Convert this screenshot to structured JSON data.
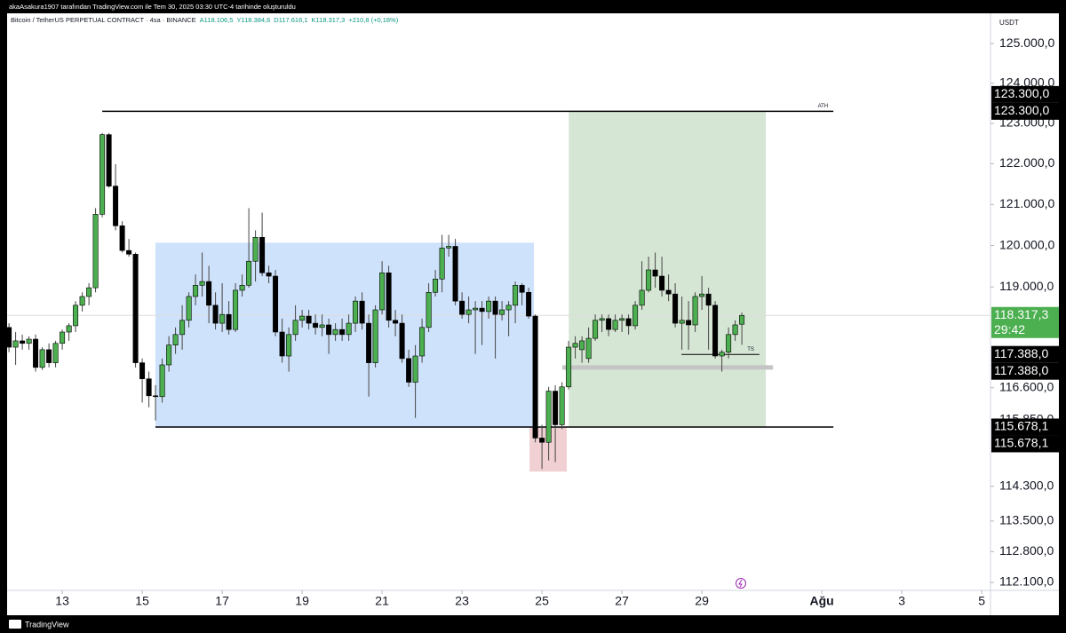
{
  "header": {
    "credit": "akaAsakura1907 tarafından TradingView.com ile Tem 30, 2025 03:30 UTC-4 tarihinde oluşturuldu",
    "symbol": "Bitcoin / TetherUS PERPETUAL CONTRACT · 4sa · BINANCE",
    "ohlc": [
      "A118.106,5",
      "Y118.384,6",
      "D117.616,1",
      "K118.317,3"
    ],
    "change": "+210,8 (+0,18%)"
  },
  "footer": {
    "brand": "TradingView"
  },
  "chart_data": {
    "type": "candlestick",
    "currency": "USDT",
    "log_scale": true,
    "up_color": "#4caf50",
    "down_color": "#000000",
    "xlim": [
      11.62,
      36.22
    ],
    "ylim": [
      111920,
      125880
    ],
    "xticks": [
      13,
      15,
      17,
      19,
      21,
      23,
      25,
      27,
      29,
      {
        "value": 32,
        "label": "Ağu"
      },
      {
        "value": 34,
        "label": "3"
      },
      {
        "value": 36,
        "label": "5"
      }
    ],
    "yticks": [
      {
        "value": 125000,
        "label": "125.000,0"
      },
      {
        "value": 124000,
        "label": "124.000,0"
      },
      {
        "value": 123000,
        "label": "123.000,0"
      },
      {
        "value": 122000,
        "label": "122.000,0"
      },
      {
        "value": 121000,
        "label": "121.000,0"
      },
      {
        "value": 120000,
        "label": "120.000,0"
      },
      {
        "value": 119000,
        "label": "119.000,0"
      },
      {
        "value": 116600,
        "label": "116.600,0"
      },
      {
        "value": 115850,
        "label": "115.850,0"
      },
      {
        "value": 114300,
        "label": "114.300,0"
      },
      {
        "value": 113500,
        "label": "113.500,0"
      },
      {
        "value": 112800,
        "label": "112.800,0"
      },
      {
        "value": 112100,
        "label": "112.100,0"
      }
    ],
    "x": [
      11.667,
      11.833,
      12,
      12.167,
      12.333,
      12.5,
      12.667,
      12.833,
      13,
      13.167,
      13.333,
      13.5,
      13.667,
      13.833,
      14,
      14.167,
      14.333,
      14.5,
      14.667,
      14.833,
      15,
      15.167,
      15.333,
      15.5,
      15.667,
      15.833,
      16,
      16.167,
      16.333,
      16.5,
      16.667,
      16.833,
      17,
      17.167,
      17.333,
      17.5,
      17.667,
      17.833,
      18,
      18.167,
      18.333,
      18.5,
      18.667,
      18.833,
      19,
      19.167,
      19.333,
      19.5,
      19.667,
      19.833,
      20,
      20.167,
      20.333,
      20.5,
      20.667,
      20.833,
      21,
      21.167,
      21.333,
      21.5,
      21.667,
      21.833,
      22,
      22.167,
      22.333,
      22.5,
      22.667,
      22.833,
      23,
      23.167,
      23.333,
      23.5,
      23.667,
      23.833,
      24,
      24.167,
      24.333,
      24.5,
      24.667,
      24.833,
      25,
      25.167,
      25.333,
      25.5,
      25.667,
      25.833,
      26,
      26.167,
      26.333,
      26.5,
      26.667,
      26.833,
      27,
      27.167,
      27.333,
      27.5,
      27.667,
      27.833,
      28,
      28.167,
      28.333,
      28.5,
      28.667,
      28.833,
      29,
      29.167,
      29.333,
      29.5,
      29.667,
      29.833,
      30
    ],
    "open": [
      118030,
      117560,
      117710,
      117650,
      117750,
      117080,
      117500,
      117190,
      117650,
      117920,
      118070,
      118560,
      118770,
      118980,
      120760,
      122720,
      121450,
      120480,
      119880,
      119790,
      117190,
      116810,
      116410,
      116390,
      117140,
      117610,
      117860,
      118200,
      118770,
      119040,
      119130,
      118560,
      118130,
      118340,
      117980,
      118920,
      119040,
      119620,
      120200,
      119340,
      119260,
      117920,
      117350,
      117860,
      118200,
      118300,
      118130,
      118030,
      118090,
      117860,
      117980,
      117860,
      118130,
      118660,
      118130,
      117190,
      118450,
      119340,
      118200,
      118130,
      117290,
      116730,
      117350,
      118030,
      118870,
      119190,
      119940,
      119980,
      118660,
      118340,
      118450,
      118490,
      118410,
      118660,
      118340,
      118450,
      118560,
      119040,
      118870,
      118300,
      115420,
      115320,
      116520,
      115730,
      116620,
      117560,
      117500,
      117290,
      117770,
      118200,
      118240,
      117980,
      118200,
      118240,
      118070,
      118560,
      118920,
      119410,
      119260,
      118920,
      118830,
      118130,
      118200,
      118090,
      118770,
      118830,
      118560,
      117350,
      117440,
      117860,
      118106.5
    ],
    "high": [
      118130,
      117920,
      117860,
      117820,
      117860,
      117560,
      117650,
      117710,
      117980,
      118130,
      118660,
      118870,
      119090,
      120910,
      122760,
      122760,
      121990,
      120590,
      120160,
      119830,
      117290,
      116980,
      116660,
      117290,
      117820,
      118030,
      118560,
      118870,
      119300,
      119830,
      119510,
      118870,
      119090,
      118660,
      119090,
      119300,
      120910,
      120370,
      120800,
      119510,
      119410,
      118240,
      118030,
      118560,
      118450,
      118450,
      118340,
      118340,
      118240,
      118130,
      118240,
      118340,
      118770,
      118870,
      118340,
      118560,
      119620,
      119510,
      118450,
      118340,
      117500,
      117610,
      118240,
      119090,
      119410,
      120260,
      120260,
      120160,
      118870,
      118770,
      118660,
      118660,
      118770,
      118770,
      118660,
      118660,
      119130,
      119090,
      118980,
      118340,
      115730,
      116620,
      116660,
      116730,
      117710,
      117820,
      117820,
      118030,
      118340,
      118340,
      118340,
      118340,
      118340,
      118340,
      118660,
      119620,
      119730,
      119830,
      119730,
      119300,
      119090,
      118770,
      118660,
      118870,
      119260,
      118980,
      118660,
      117500,
      118030,
      118200,
      118384.6
    ],
    "low": [
      117440,
      117140,
      117500,
      117500,
      116980,
      117020,
      117080,
      117080,
      117500,
      117710,
      117920,
      118410,
      118560,
      118870,
      120690,
      121410,
      120370,
      119830,
      119730,
      117080,
      116250,
      116140,
      115830,
      116250,
      116980,
      117400,
      117500,
      118030,
      118560,
      118770,
      118130,
      117980,
      117920,
      117860,
      117920,
      118770,
      118980,
      119130,
      119260,
      119090,
      117820,
      117190,
      116980,
      117710,
      118030,
      117980,
      117860,
      117820,
      117400,
      117710,
      117710,
      117710,
      117920,
      117980,
      116390,
      117080,
      118340,
      118030,
      117820,
      117190,
      116620,
      115890,
      117190,
      117920,
      118770,
      118870,
      119730,
      118560,
      118240,
      118130,
      117400,
      117610,
      118240,
      117290,
      118200,
      117820,
      118130,
      118560,
      118240,
      115320,
      114700,
      114900,
      114860,
      115630,
      116560,
      117290,
      117190,
      117190,
      117710,
      117920,
      117820,
      117920,
      117920,
      117860,
      117980,
      118450,
      118870,
      118980,
      118770,
      118660,
      118030,
      117500,
      117500,
      117920,
      118450,
      117500,
      117290,
      116980,
      117290,
      117710,
      117616.1
    ],
    "close": [
      117560,
      117710,
      117650,
      117750,
      117080,
      117500,
      117190,
      117650,
      117920,
      118070,
      118560,
      118770,
      118980,
      120760,
      122720,
      121450,
      120480,
      119880,
      119790,
      117190,
      116810,
      116410,
      116390,
      117140,
      117610,
      117860,
      118200,
      118770,
      119040,
      119130,
      118560,
      118130,
      118340,
      117980,
      118920,
      119040,
      119620,
      120200,
      119340,
      119260,
      117920,
      117350,
      117860,
      118200,
      118300,
      118130,
      118030,
      118090,
      117860,
      117980,
      117860,
      118130,
      118660,
      118130,
      117190,
      118450,
      119340,
      118200,
      118130,
      117290,
      116730,
      117350,
      118030,
      118870,
      119190,
      119940,
      119980,
      118660,
      118340,
      118450,
      118490,
      118410,
      118660,
      118340,
      118450,
      118560,
      119040,
      118870,
      118300,
      115420,
      115320,
      116520,
      115730,
      116620,
      117560,
      117650,
      117710,
      117770,
      118200,
      118240,
      117980,
      118200,
      118240,
      118070,
      118560,
      118920,
      119410,
      119260,
      118920,
      118830,
      118130,
      118200,
      118090,
      118770,
      118830,
      118560,
      117350,
      117440,
      117860,
      118090,
      118317.3
    ],
    "boxes": [
      {
        "x": [
          15.33,
          24.8
        ],
        "y": [
          115678.1,
          120070
        ],
        "color": "#cfe2fb"
      },
      {
        "x": [
          25.67,
          30.6
        ],
        "y": [
          115678.1,
          123300
        ],
        "color": "#d6e6d5"
      },
      {
        "x": [
          24.69,
          25.62
        ],
        "y": [
          114640,
          115678.1
        ],
        "color": "#f0d0d2"
      }
    ],
    "lines": [
      {
        "x": [
          14,
          32.29
        ],
        "y": 123300,
        "label": "ATH",
        "color": "#000000",
        "width": 1.5
      },
      {
        "x": [
          15.33,
          32.29
        ],
        "y": 115678.1,
        "color": "#000000",
        "width": 1.5
      },
      {
        "x": [
          28.49,
          30.44
        ],
        "y": 117388,
        "label": "TS",
        "color": "#000000",
        "width": 1
      },
      {
        "x": [
          25.51,
          30.78
        ],
        "y": 117080,
        "color": "#c4c4c4",
        "width": 5
      }
    ],
    "price_labels": [
      {
        "value": 123300,
        "label": "123.300,0",
        "color": "#000000"
      },
      {
        "value": 117388,
        "label": "117.388,0",
        "color": "#000000"
      },
      {
        "value": 115678.1,
        "label": "115.678,1",
        "color": "#000000"
      },
      {
        "value": 118317.3,
        "label": "118.317,3",
        "color": "#4caf50"
      }
    ],
    "countdown": "29:42"
  }
}
